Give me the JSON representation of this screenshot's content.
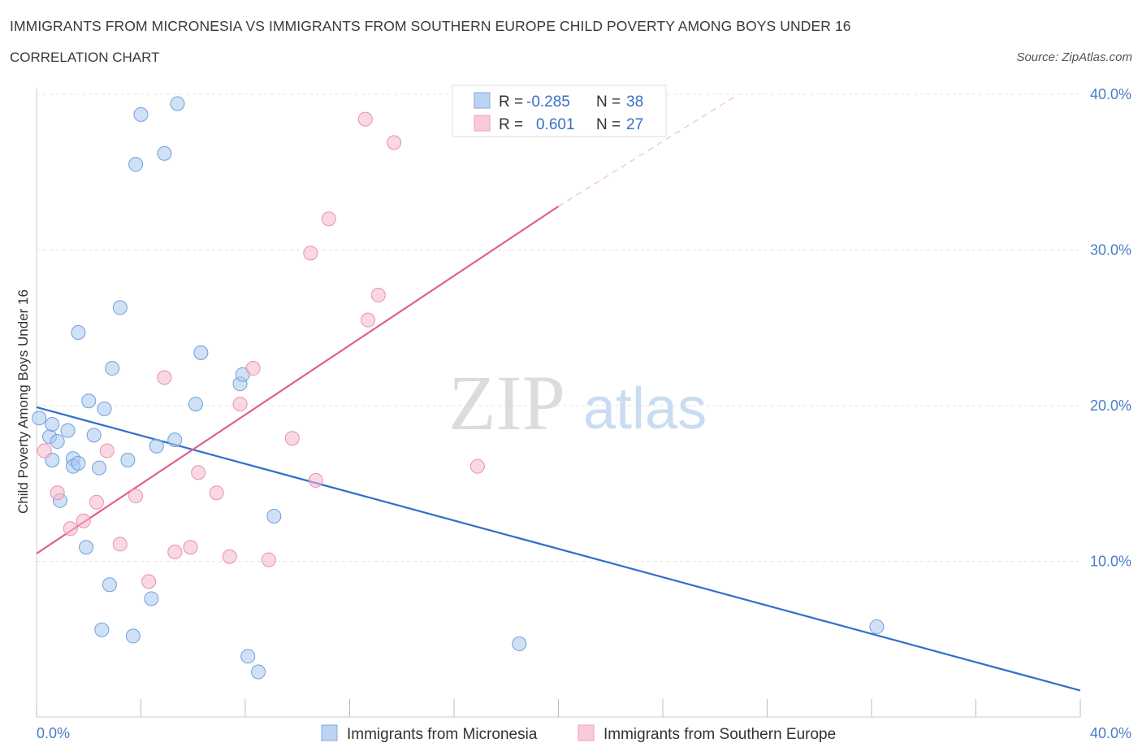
{
  "header": {
    "title": "IMMIGRANTS FROM MICRONESIA VS IMMIGRANTS FROM SOUTHERN EUROPE CHILD POVERTY AMONG BOYS UNDER 16",
    "subtitle": "CORRELATION CHART",
    "source": "Source: ZipAtlas.com"
  },
  "watermark": {
    "zip": "ZIP",
    "atlas": "atlas"
  },
  "stats_legend": {
    "rows": [
      {
        "r_label": "R =",
        "r_value": "-0.285",
        "n_label": "N =",
        "n_value": "38",
        "color": "#a9c8ef"
      },
      {
        "r_label": "R =",
        "r_value": "0.601",
        "n_label": "N =",
        "n_value": "27",
        "color": "#f5b8cb"
      }
    ]
  },
  "chart_data": {
    "type": "scatter",
    "ylabel": "Child Poverty Among Boys Under 16",
    "xlim": [
      0,
      40
    ],
    "ylim": [
      0,
      40
    ],
    "x_tick_labels": [
      {
        "value": 0,
        "label": "0.0%"
      },
      {
        "value": 40,
        "label": "40.0%"
      }
    ],
    "y_tick_labels": [
      {
        "value": 10,
        "label": "10.0%"
      },
      {
        "value": 20,
        "label": "20.0%"
      },
      {
        "value": 30,
        "label": "30.0%"
      },
      {
        "value": 40,
        "label": "40.0%"
      }
    ],
    "grid": true,
    "legend_position": "bottom",
    "series": [
      {
        "name": "Immigrants from Micronesia",
        "color": "#a9c8ef",
        "stroke": "#6f9fdc",
        "line_color": "#2e6fcc",
        "trend": {
          "x": [
            0,
            40
          ],
          "y": [
            19.9,
            1.7
          ]
        },
        "points": [
          [
            0.1,
            19.2
          ],
          [
            0.5,
            18.0
          ],
          [
            0.6,
            16.5
          ],
          [
            0.6,
            18.8
          ],
          [
            0.8,
            17.7
          ],
          [
            0.9,
            13.9
          ],
          [
            1.2,
            18.4
          ],
          [
            1.4,
            16.6
          ],
          [
            1.4,
            16.1
          ],
          [
            1.6,
            16.3
          ],
          [
            1.6,
            24.7
          ],
          [
            1.9,
            10.9
          ],
          [
            2.0,
            20.3
          ],
          [
            2.2,
            18.1
          ],
          [
            2.4,
            16.0
          ],
          [
            2.5,
            5.6
          ],
          [
            2.6,
            19.8
          ],
          [
            2.8,
            8.5
          ],
          [
            2.9,
            22.4
          ],
          [
            3.2,
            26.3
          ],
          [
            3.5,
            16.5
          ],
          [
            3.7,
            5.2
          ],
          [
            3.8,
            35.5
          ],
          [
            4.0,
            38.7
          ],
          [
            4.4,
            7.6
          ],
          [
            4.6,
            17.4
          ],
          [
            4.9,
            36.2
          ],
          [
            5.3,
            17.8
          ],
          [
            5.4,
            39.4
          ],
          [
            6.1,
            20.1
          ],
          [
            6.3,
            23.4
          ],
          [
            7.8,
            21.4
          ],
          [
            7.9,
            22.0
          ],
          [
            8.1,
            3.9
          ],
          [
            8.5,
            2.9
          ],
          [
            9.1,
            12.9
          ],
          [
            18.5,
            4.7
          ],
          [
            32.2,
            5.8
          ]
        ]
      },
      {
        "name": "Immigrants from Southern Europe",
        "color": "#f5b8cb",
        "stroke": "#e98fad",
        "line_color": "#e0608a",
        "trend": {
          "x": [
            0,
            20
          ],
          "y": [
            10.5,
            32.8
          ]
        },
        "trend_dashed_to": {
          "x": 26.9,
          "y": 40.0
        },
        "points": [
          [
            0.3,
            17.1
          ],
          [
            0.8,
            14.4
          ],
          [
            1.3,
            12.1
          ],
          [
            1.8,
            12.6
          ],
          [
            2.3,
            13.8
          ],
          [
            2.7,
            17.1
          ],
          [
            3.2,
            11.1
          ],
          [
            3.8,
            14.2
          ],
          [
            4.3,
            8.7
          ],
          [
            4.9,
            21.8
          ],
          [
            5.3,
            10.6
          ],
          [
            5.9,
            10.9
          ],
          [
            6.2,
            15.7
          ],
          [
            6.9,
            14.4
          ],
          [
            7.4,
            10.3
          ],
          [
            7.8,
            20.1
          ],
          [
            8.3,
            22.4
          ],
          [
            8.9,
            10.1
          ],
          [
            9.8,
            17.9
          ],
          [
            10.5,
            29.8
          ],
          [
            10.7,
            15.2
          ],
          [
            11.2,
            32.0
          ],
          [
            12.6,
            38.4
          ],
          [
            12.7,
            25.5
          ],
          [
            13.1,
            27.1
          ],
          [
            13.7,
            36.9
          ],
          [
            16.9,
            16.1
          ]
        ]
      }
    ]
  }
}
